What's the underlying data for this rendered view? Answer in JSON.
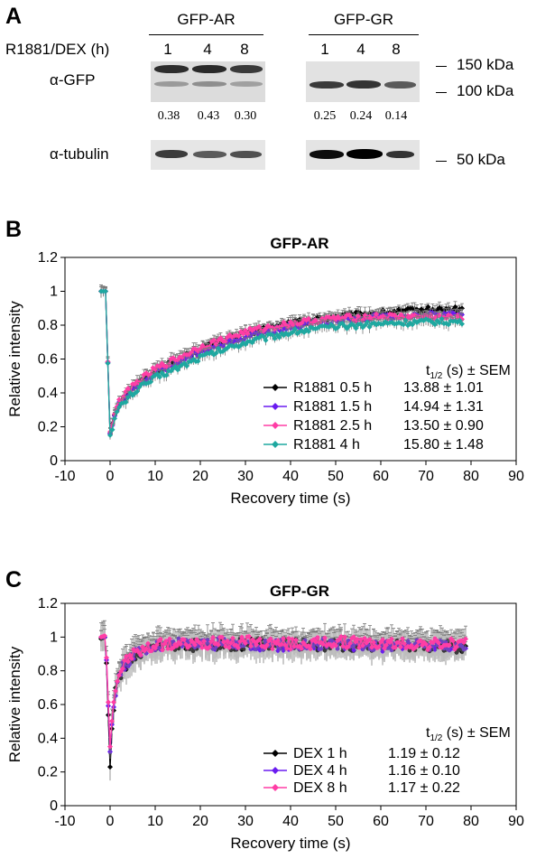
{
  "panel_a": {
    "letter": "A",
    "groups": [
      {
        "label": "GFP-AR",
        "lanes": [
          "1",
          "4",
          "8"
        ],
        "ratios": [
          "0.38",
          "0.43",
          "0.30"
        ]
      },
      {
        "label": "GFP-GR",
        "lanes": [
          "1",
          "4",
          "8"
        ],
        "ratios": [
          "0.25",
          "0.24",
          "0.14"
        ]
      }
    ],
    "treatment_label": "R1881/DEX (h)",
    "row_labels": {
      "gfp": "α-GFP",
      "tubulin": "α-tubulin"
    },
    "markers": [
      "150 kDa",
      "100 kDa",
      "50 kDa"
    ]
  },
  "panel_b": {
    "letter": "B"
  },
  "panel_c": {
    "letter": "C"
  },
  "chart_data": [
    {
      "type": "line",
      "title": "GFP-AR",
      "xlabel": "Recovery time (s)",
      "ylabel": "Relative intensity",
      "xlim": [
        -10,
        90
      ],
      "ylim": [
        0,
        1.2
      ],
      "xticks": [
        "-10",
        "0",
        "10",
        "20",
        "30",
        "40",
        "50",
        "60",
        "70",
        "80",
        "90"
      ],
      "yticks": [
        "0",
        "0.2",
        "0.4",
        "0.6",
        "0.8",
        "1",
        "1.2"
      ],
      "grid": false,
      "legend_position": "bottom-right",
      "legend_header": {
        "main": "t",
        "sub": "1/2",
        "rest": " (s) ± SEM"
      },
      "series": [
        {
          "name": "R1881 0.5 h",
          "stat": "13.88 ± 1.01",
          "color": "#000000",
          "x": [
            -2,
            -1,
            0,
            1,
            2,
            5,
            10,
            20,
            30,
            40,
            50,
            60,
            70,
            78
          ],
          "y": [
            1.0,
            1.0,
            0.16,
            0.28,
            0.34,
            0.43,
            0.53,
            0.66,
            0.75,
            0.81,
            0.85,
            0.87,
            0.89,
            0.89
          ]
        },
        {
          "name": "R1881 1.5 h",
          "stat": "14.94 ± 1.31",
          "color": "#6a1cf0",
          "x": [
            -2,
            -1,
            0,
            1,
            2,
            5,
            10,
            20,
            30,
            40,
            50,
            60,
            70,
            78
          ],
          "y": [
            1.0,
            1.0,
            0.16,
            0.27,
            0.33,
            0.42,
            0.52,
            0.64,
            0.73,
            0.79,
            0.83,
            0.85,
            0.86,
            0.86
          ]
        },
        {
          "name": "R1881 2.5 h",
          "stat": "13.50 ± 0.90",
          "color": "#ff3ea5",
          "x": [
            -2,
            -1,
            0,
            1,
            2,
            5,
            10,
            20,
            30,
            40,
            50,
            60,
            70,
            78
          ],
          "y": [
            1.0,
            1.0,
            0.17,
            0.28,
            0.35,
            0.44,
            0.54,
            0.67,
            0.76,
            0.81,
            0.84,
            0.85,
            0.85,
            0.84
          ]
        },
        {
          "name": "R1881 4 h",
          "stat": "15.80 ± 1.48",
          "color": "#1fa8a0",
          "x": [
            -2,
            -1,
            0,
            1,
            2,
            5,
            10,
            20,
            30,
            40,
            50,
            60,
            70,
            78
          ],
          "y": [
            1.0,
            1.0,
            0.15,
            0.25,
            0.31,
            0.4,
            0.49,
            0.61,
            0.7,
            0.76,
            0.79,
            0.81,
            0.82,
            0.82
          ]
        }
      ]
    },
    {
      "type": "line",
      "title": "GFP-GR",
      "xlabel": "Recovery time (s)",
      "ylabel": "Relative intensity",
      "xlim": [
        -10,
        90
      ],
      "ylim": [
        0,
        1.2
      ],
      "xticks": [
        "-10",
        "0",
        "10",
        "20",
        "30",
        "40",
        "50",
        "60",
        "70",
        "80",
        "90"
      ],
      "yticks": [
        "0",
        "0.2",
        "0.4",
        "0.6",
        "0.8",
        "1",
        "1.2"
      ],
      "grid": false,
      "legend_position": "bottom-right",
      "legend_header": {
        "main": "t",
        "sub": "1/2",
        "rest": " (s) ± SEM"
      },
      "series": [
        {
          "name": "DEX 1 h",
          "stat": "1.19 ± 0.12",
          "color": "#000000",
          "x": [
            -2,
            -1,
            0,
            0.5,
            1,
            2,
            3,
            5,
            8,
            10,
            15,
            20,
            30,
            40,
            50,
            60,
            70,
            79
          ],
          "y": [
            0.99,
            1.0,
            0.23,
            0.5,
            0.65,
            0.76,
            0.82,
            0.88,
            0.92,
            0.94,
            0.95,
            0.95,
            0.96,
            0.96,
            0.95,
            0.95,
            0.95,
            0.94
          ]
        },
        {
          "name": "DEX 4 h",
          "stat": "1.16 ± 0.10",
          "color": "#6a1cf0",
          "x": [
            -2,
            -1,
            0,
            0.5,
            1,
            2,
            3,
            5,
            8,
            10,
            15,
            20,
            30,
            40,
            50,
            60,
            70,
            79
          ],
          "y": [
            1.0,
            1.0,
            0.32,
            0.52,
            0.66,
            0.77,
            0.83,
            0.89,
            0.93,
            0.94,
            0.96,
            0.96,
            0.96,
            0.95,
            0.96,
            0.95,
            0.95,
            0.95
          ]
        },
        {
          "name": "DEX 8 h",
          "stat": "1.17 ± 0.22",
          "color": "#ff3ea5",
          "x": [
            -2,
            -1,
            0,
            0.5,
            1,
            2,
            3,
            5,
            8,
            10,
            15,
            20,
            30,
            40,
            50,
            60,
            70,
            79
          ],
          "y": [
            1.0,
            1.01,
            0.35,
            0.55,
            0.68,
            0.78,
            0.84,
            0.9,
            0.93,
            0.95,
            0.96,
            0.96,
            0.97,
            0.96,
            0.97,
            0.96,
            0.96,
            0.96
          ]
        }
      ]
    }
  ]
}
